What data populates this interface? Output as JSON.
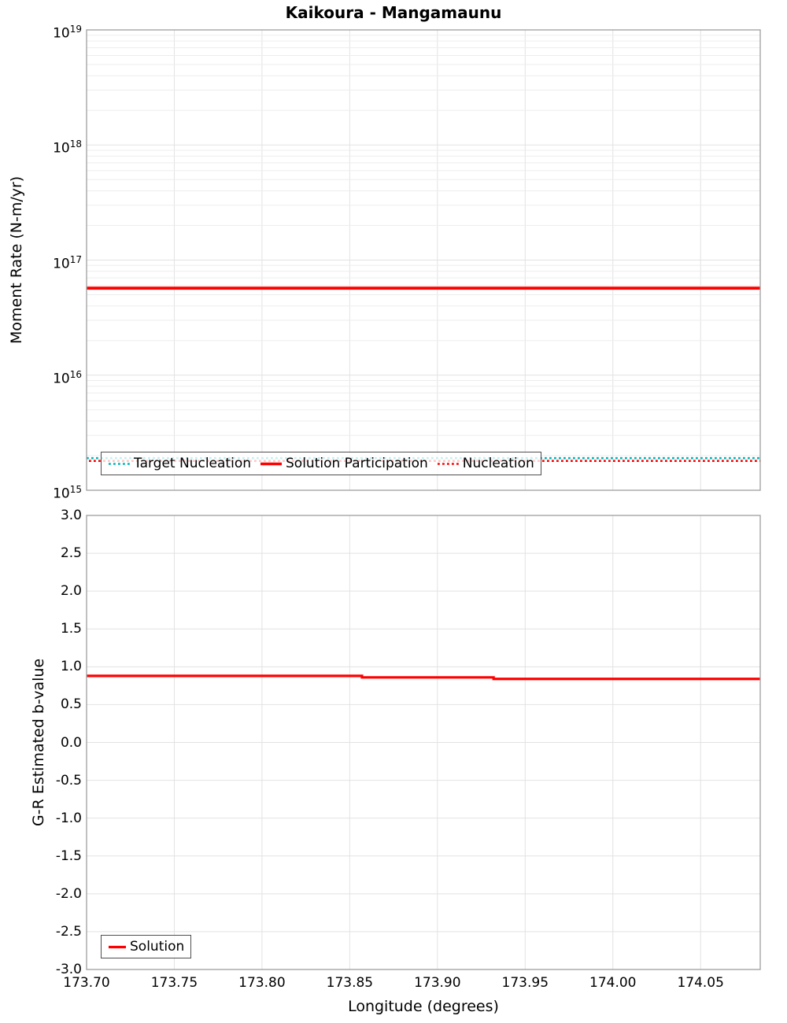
{
  "title": "Kaikoura - Mangamaunu",
  "colors": {
    "red": "#ff0000",
    "teal": "#00b5b8",
    "grid_major": "#e2e2e2",
    "grid_minor": "#ededed",
    "panel_border": "#9e9e9e",
    "legend_border": "#4f4f4f",
    "text": "#000000"
  },
  "x_axis": {
    "label": "Longitude (degrees)",
    "min": 173.7,
    "max": 174.084,
    "ticks": [
      173.7,
      173.75,
      173.8,
      173.85,
      173.9,
      173.95,
      174.0,
      174.05
    ],
    "tick_labels": [
      "173.70",
      "173.75",
      "173.80",
      "173.85",
      "173.90",
      "173.95",
      "174.00",
      "174.05"
    ]
  },
  "chart_data": [
    {
      "type": "line",
      "panel": "top",
      "title": "Kaikoura - Mangamaunu",
      "ylabel": "Moment Rate (N-m/yr)",
      "yscale": "log",
      "ylim": [
        1000000000000000.0,
        1e+19
      ],
      "y_tick_base": "10",
      "y_tick_exponents": [
        "19",
        "18",
        "17",
        "16",
        "15"
      ],
      "xlim": [
        173.7,
        174.084
      ],
      "grid": true,
      "legend_position": "lower left",
      "series": [
        {
          "name": "Target Nucleation",
          "style": "dotted",
          "color_key": "teal",
          "value": 1900000000000000.0
        },
        {
          "name": "Solution Participation",
          "style": "solid",
          "color_key": "red",
          "value": 5.7e+16
        },
        {
          "name": "Nucleation",
          "style": "dotted",
          "color_key": "red",
          "value": 1800000000000000.0
        }
      ]
    },
    {
      "type": "line",
      "panel": "bottom",
      "ylabel": "G-R Estimated b-value",
      "xlabel": "Longitude (degrees)",
      "ylim": [
        -3.0,
        3.0
      ],
      "y_ticks": [
        3.0,
        2.5,
        2.0,
        1.5,
        1.0,
        0.5,
        0.0,
        -0.5,
        -1.0,
        -1.5,
        -2.0,
        -2.5,
        -3.0
      ],
      "y_tick_labels": [
        "3.0",
        "2.5",
        "2.0",
        "1.5",
        "1.0",
        "0.5",
        "0.0",
        "-0.5",
        "-1.0",
        "-1.5",
        "-2.0",
        "-2.5",
        "-3.0"
      ],
      "xlim": [
        173.7,
        174.084
      ],
      "grid": true,
      "legend_position": "lower left",
      "series": [
        {
          "name": "Solution",
          "style": "solid",
          "color_key": "red",
          "steps": [
            {
              "x_start": 173.7,
              "x_end": 173.857,
              "value": 0.88
            },
            {
              "x_start": 173.857,
              "x_end": 173.932,
              "value": 0.86
            },
            {
              "x_start": 173.932,
              "x_end": 174.084,
              "value": 0.84
            }
          ]
        }
      ]
    }
  ]
}
